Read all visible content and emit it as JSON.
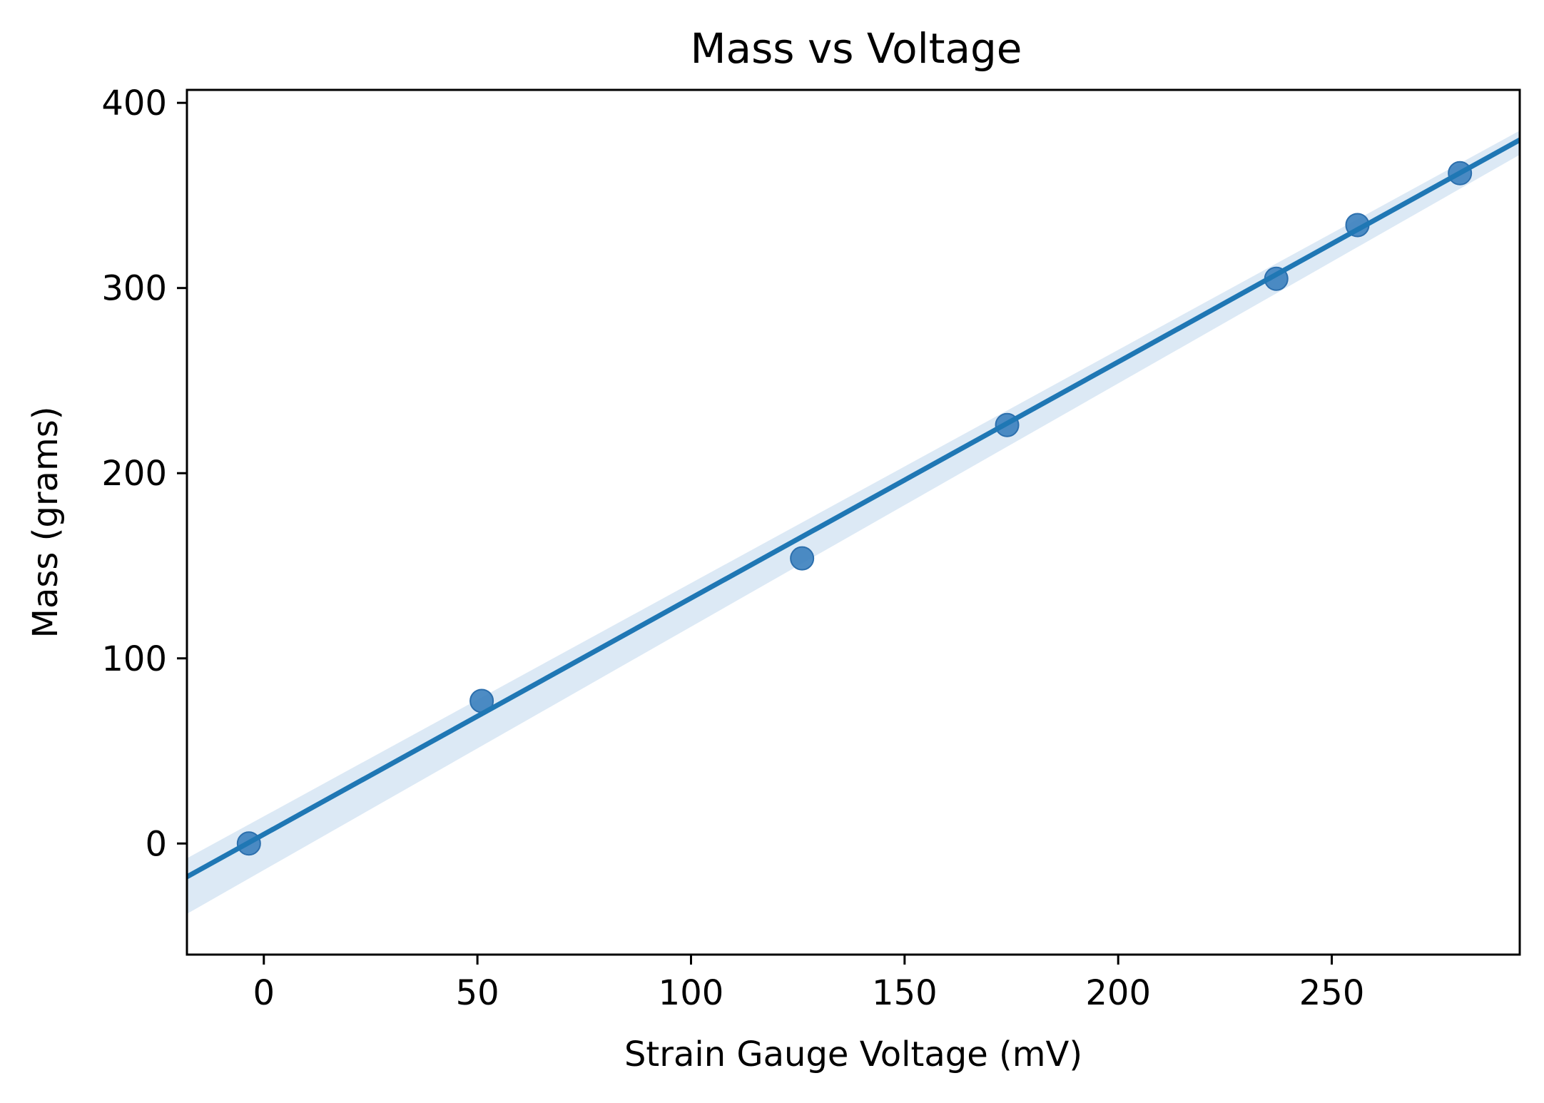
{
  "chart_data": {
    "type": "scatter",
    "title": "Mass vs Voltage",
    "xlabel": "Strain Gauge Voltage (mV)",
    "ylabel": "Mass (grams)",
    "xlim": [
      -18,
      294
    ],
    "ylim": [
      -60,
      407
    ],
    "xticks": [
      0,
      50,
      100,
      150,
      200,
      250
    ],
    "yticks": [
      0,
      100,
      200,
      300,
      400
    ],
    "grid": false,
    "series": [
      {
        "x": [
          -3.5,
          51,
          126,
          174,
          237,
          256,
          280
        ],
        "y": [
          0,
          77,
          154,
          226,
          305,
          334,
          362
        ]
      }
    ],
    "regression": {
      "x_start": -18,
      "y_start": -18,
      "x_end": 294,
      "y_end": 380,
      "band_upper": [
        [
          -18,
          -8
        ],
        [
          294,
          385
        ]
      ],
      "band_lower": [
        [
          -18,
          -38
        ],
        [
          294,
          372
        ]
      ]
    },
    "colors": {
      "points": "#3a7fbe",
      "line": "#1f77b4",
      "band": "#c5dbef"
    }
  }
}
